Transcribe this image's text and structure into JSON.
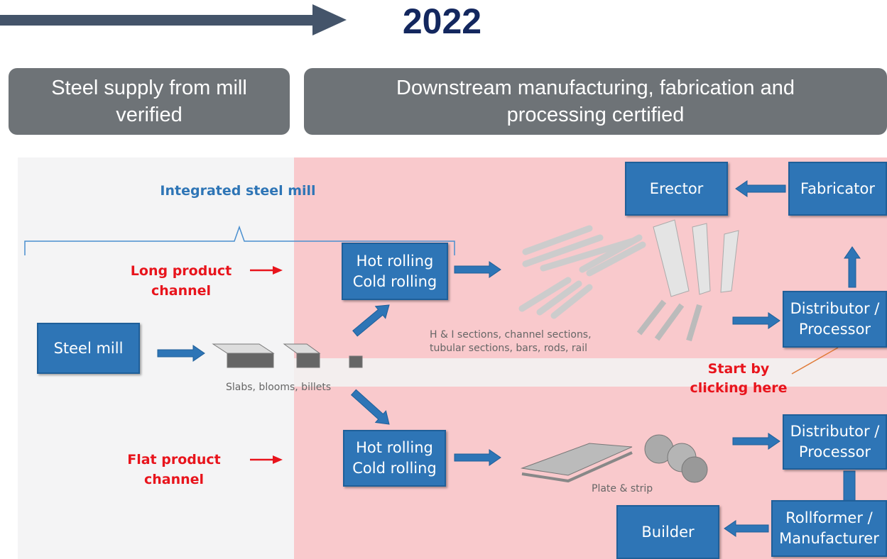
{
  "year": "2022",
  "headers": [
    [
      "Steel supply from mill",
      "verified"
    ],
    [
      "Downstream manufacturing, fabrication and",
      "processing certified"
    ]
  ],
  "diagram": {
    "bracket_label": "Integrated steel mill",
    "channels": [
      [
        "Long product",
        "channel"
      ],
      [
        "Flat product",
        "channel"
      ]
    ],
    "nodes": [
      {
        "id": "steel-mill",
        "lines": [
          "Steel mill"
        ]
      },
      {
        "id": "rolling-long",
        "lines": [
          "Hot rolling",
          "Cold rolling"
        ]
      },
      {
        "id": "rolling-flat",
        "lines": [
          "Hot rolling",
          "Cold rolling"
        ]
      },
      {
        "id": "erector",
        "lines": [
          "Erector"
        ]
      },
      {
        "id": "fabricator",
        "lines": [
          "Fabricator"
        ]
      },
      {
        "id": "distributor-long",
        "lines": [
          "Distributor /",
          "Processor"
        ]
      },
      {
        "id": "distributor-flat",
        "lines": [
          "Distributor /",
          "Processor"
        ]
      },
      {
        "id": "rollformer",
        "lines": [
          "Rollformer /",
          "Manufacturer"
        ]
      },
      {
        "id": "builder",
        "lines": [
          "Builder"
        ]
      }
    ],
    "captions": [
      [
        "Slabs, blooms, billets"
      ],
      [
        "H & I sections, channel sections,",
        "tubular sections, bars, rods, rail"
      ],
      [
        "Plate & strip"
      ]
    ],
    "callout": [
      "Start by",
      "clicking here"
    ]
  }
}
